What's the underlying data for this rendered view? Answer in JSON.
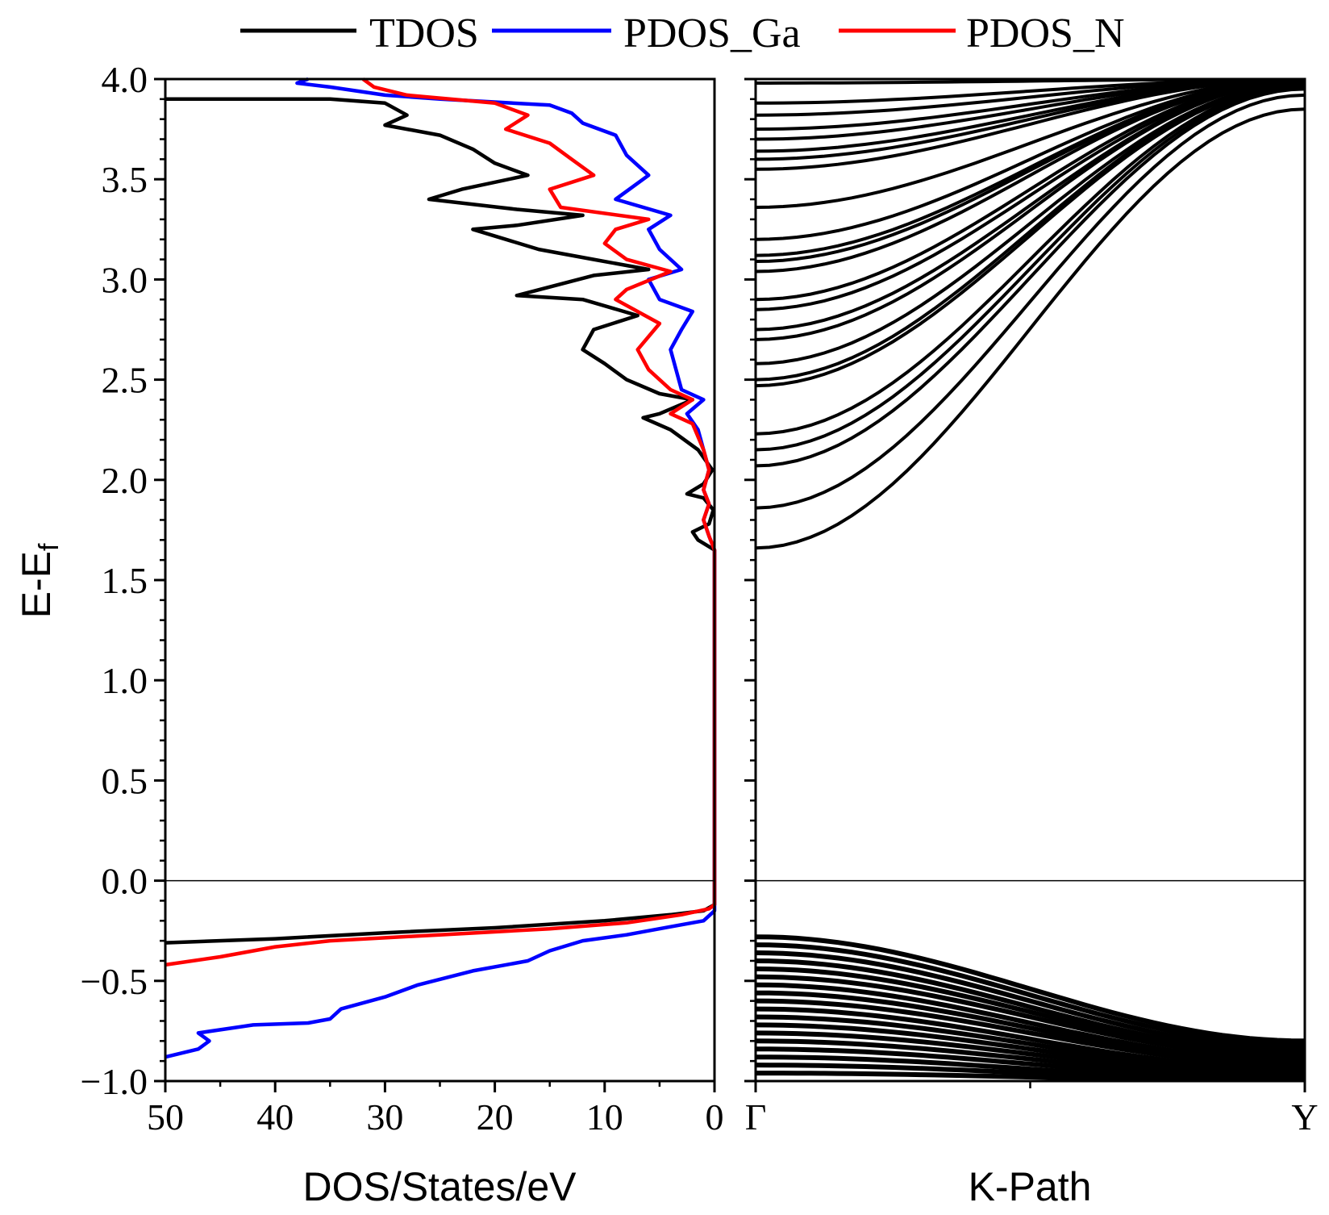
{
  "chart_data": [
    {
      "type": "line",
      "panel": "DOS",
      "xlabel": "DOS/States/eV",
      "ylabel_main": "E-E",
      "ylabel_sub": "f",
      "xlim": [
        50,
        0
      ],
      "ylim": [
        -1.0,
        4.0
      ],
      "x_ticks": [
        "50",
        "40",
        "30",
        "20",
        "10",
        "0"
      ],
      "x_tick_values": [
        50,
        40,
        30,
        20,
        10,
        0
      ],
      "y_ticks": [
        "−1.0",
        "−0.5",
        "0.0",
        "0.5",
        "1.0",
        "1.5",
        "2.0",
        "2.5",
        "3.0",
        "3.5",
        "4.0"
      ],
      "y_tick_values": [
        -1.0,
        -0.5,
        0.0,
        0.5,
        1.0,
        1.5,
        2.0,
        2.5,
        3.0,
        3.5,
        4.0
      ],
      "reference_line_y": 0.0,
      "series": [
        {
          "name": "TDOS",
          "color": "#000000",
          "points": [
            [
              50,
              -0.31
            ],
            [
              40,
              -0.29
            ],
            [
              30,
              -0.26
            ],
            [
              20,
              -0.235
            ],
            [
              10,
              -0.2
            ],
            [
              4,
              -0.17
            ],
            [
              1,
              -0.15
            ],
            [
              0,
              -0.12
            ],
            [
              0,
              1.65
            ],
            [
              1.5,
              1.7
            ],
            [
              2,
              1.74
            ],
            [
              0.5,
              1.78
            ],
            [
              0.1,
              1.85
            ],
            [
              1,
              1.91
            ],
            [
              2.5,
              1.93
            ],
            [
              1,
              1.98
            ],
            [
              0.2,
              2.05
            ],
            [
              1.5,
              2.15
            ],
            [
              4,
              2.25
            ],
            [
              6.5,
              2.31
            ],
            [
              5,
              2.33
            ],
            [
              2,
              2.4
            ],
            [
              5,
              2.43
            ],
            [
              8,
              2.5
            ],
            [
              10,
              2.58
            ],
            [
              12,
              2.65
            ],
            [
              11,
              2.75
            ],
            [
              7,
              2.82
            ],
            [
              12,
              2.9
            ],
            [
              18,
              2.92
            ],
            [
              11,
              3.02
            ],
            [
              6,
              3.05
            ],
            [
              11,
              3.1
            ],
            [
              16,
              3.15
            ],
            [
              22,
              3.25
            ],
            [
              18,
              3.27
            ],
            [
              12,
              3.32
            ],
            [
              18,
              3.35
            ],
            [
              26,
              3.4
            ],
            [
              23,
              3.45
            ],
            [
              17,
              3.52
            ],
            [
              20,
              3.58
            ],
            [
              22,
              3.65
            ],
            [
              25,
              3.72
            ],
            [
              30,
              3.77
            ],
            [
              28,
              3.82
            ],
            [
              30,
              3.88
            ],
            [
              35,
              3.9
            ],
            [
              42,
              3.9
            ],
            [
              50,
              3.9
            ]
          ]
        },
        {
          "name": "PDOS_Ga",
          "color": "#0000ff",
          "points": [
            [
              50,
              -0.88
            ],
            [
              47,
              -0.84
            ],
            [
              46,
              -0.8
            ],
            [
              47,
              -0.76
            ],
            [
              42,
              -0.72
            ],
            [
              37,
              -0.71
            ],
            [
              35,
              -0.69
            ],
            [
              34,
              -0.64
            ],
            [
              30,
              -0.58
            ],
            [
              27,
              -0.52
            ],
            [
              22,
              -0.45
            ],
            [
              17,
              -0.4
            ],
            [
              15,
              -0.35
            ],
            [
              12,
              -0.3
            ],
            [
              8,
              -0.27
            ],
            [
              4,
              -0.23
            ],
            [
              1,
              -0.2
            ],
            [
              0,
              -0.15
            ],
            [
              0,
              1.65
            ],
            [
              0.5,
              1.72
            ],
            [
              1,
              1.8
            ],
            [
              0.5,
              1.88
            ],
            [
              1,
              1.95
            ],
            [
              0.5,
              2.05
            ],
            [
              1,
              2.15
            ],
            [
              1.5,
              2.25
            ],
            [
              2.5,
              2.33
            ],
            [
              1,
              2.4
            ],
            [
              3,
              2.45
            ],
            [
              3.5,
              2.55
            ],
            [
              4,
              2.65
            ],
            [
              3,
              2.75
            ],
            [
              2,
              2.84
            ],
            [
              5,
              2.9
            ],
            [
              6,
              3.0
            ],
            [
              3,
              3.05
            ],
            [
              5,
              3.15
            ],
            [
              6,
              3.25
            ],
            [
              4,
              3.32
            ],
            [
              9,
              3.4
            ],
            [
              6,
              3.52
            ],
            [
              8,
              3.62
            ],
            [
              9,
              3.72
            ],
            [
              12,
              3.78
            ],
            [
              13,
              3.83
            ],
            [
              15,
              3.87
            ],
            [
              25,
              3.9
            ],
            [
              30,
              3.92
            ],
            [
              35,
              3.96
            ],
            [
              38,
              3.98
            ],
            [
              37,
              4.0
            ]
          ]
        },
        {
          "name": "PDOS_N",
          "color": "#ff0000",
          "points": [
            [
              50,
              -0.42
            ],
            [
              45,
              -0.38
            ],
            [
              40,
              -0.33
            ],
            [
              35,
              -0.3
            ],
            [
              25,
              -0.27
            ],
            [
              15,
              -0.24
            ],
            [
              8,
              -0.21
            ],
            [
              3,
              -0.17
            ],
            [
              0.5,
              -0.14
            ],
            [
              0,
              -0.12
            ],
            [
              0,
              1.65
            ],
            [
              0.5,
              1.72
            ],
            [
              1,
              1.8
            ],
            [
              0.5,
              1.88
            ],
            [
              1,
              1.95
            ],
            [
              0.5,
              2.05
            ],
            [
              1,
              2.15
            ],
            [
              2,
              2.28
            ],
            [
              4,
              2.33
            ],
            [
              2,
              2.4
            ],
            [
              4,
              2.45
            ],
            [
              6,
              2.55
            ],
            [
              7,
              2.65
            ],
            [
              5,
              2.78
            ],
            [
              9,
              2.9
            ],
            [
              8,
              2.95
            ],
            [
              4,
              3.04
            ],
            [
              8,
              3.1
            ],
            [
              10,
              3.18
            ],
            [
              9,
              3.25
            ],
            [
              6,
              3.3
            ],
            [
              14,
              3.36
            ],
            [
              15,
              3.45
            ],
            [
              11,
              3.52
            ],
            [
              13,
              3.6
            ],
            [
              15,
              3.68
            ],
            [
              19,
              3.75
            ],
            [
              17,
              3.82
            ],
            [
              20,
              3.88
            ],
            [
              28,
              3.92
            ],
            [
              31,
              3.96
            ],
            [
              32,
              4.0
            ]
          ]
        }
      ]
    },
    {
      "type": "line",
      "panel": "Band structure",
      "xlabel": "K-Path",
      "ylim": [
        -1.0,
        4.0
      ],
      "x_ticks": [
        "Γ",
        "Y"
      ],
      "x_tick_values": [
        0,
        1
      ],
      "reference_line_y": 0.0,
      "line_color": "#000000",
      "conduction_bands": [
        {
          "gamma": 1.66,
          "y_end": 3.85
        },
        {
          "gamma": 1.86,
          "y_end": 3.92
        },
        {
          "gamma": 2.07,
          "y_end": 3.95
        },
        {
          "gamma": 2.15,
          "y_end": 3.96
        },
        {
          "gamma": 2.23,
          "y_end": 3.97
        },
        {
          "gamma": 2.47,
          "y_end": 3.97
        },
        {
          "gamma": 2.5,
          "y_end": 3.98
        },
        {
          "gamma": 2.58,
          "y_end": 3.98
        },
        {
          "gamma": 2.7,
          "y_end": 3.99
        },
        {
          "gamma": 2.75,
          "y_end": 3.99
        },
        {
          "gamma": 2.85,
          "y_end": 3.99
        },
        {
          "gamma": 2.9,
          "y_end": 4.0
        },
        {
          "gamma": 3.04,
          "y_end": 4.0
        },
        {
          "gamma": 3.09,
          "y_end": 4.0
        },
        {
          "gamma": 3.12,
          "y_end": 4.0
        },
        {
          "gamma": 3.2,
          "y_end": 4.0
        },
        {
          "gamma": 3.36,
          "y_end": 4.0
        },
        {
          "gamma": 3.55,
          "y_end": 4.0
        },
        {
          "gamma": 3.6,
          "y_end": 4.0
        },
        {
          "gamma": 3.64,
          "y_end": 4.0
        },
        {
          "gamma": 3.7,
          "y_end": 4.0
        },
        {
          "gamma": 3.75,
          "y_end": 4.0
        },
        {
          "gamma": 3.82,
          "y_end": 4.0
        },
        {
          "gamma": 3.88,
          "y_end": 4.0
        },
        {
          "gamma": 3.98,
          "y_end": 4.0
        }
      ],
      "valence_bands": [
        {
          "gamma": -0.28,
          "y_end": -0.8
        },
        {
          "gamma": -0.32,
          "y_end": -0.82
        },
        {
          "gamma": -0.36,
          "y_end": -0.84
        },
        {
          "gamma": -0.4,
          "y_end": -0.86
        },
        {
          "gamma": -0.44,
          "y_end": -0.87
        },
        {
          "gamma": -0.48,
          "y_end": -0.88
        },
        {
          "gamma": -0.52,
          "y_end": -0.9
        },
        {
          "gamma": -0.56,
          "y_end": -0.91
        },
        {
          "gamma": -0.6,
          "y_end": -0.92
        },
        {
          "gamma": -0.64,
          "y_end": -0.94
        },
        {
          "gamma": -0.68,
          "y_end": -0.95
        },
        {
          "gamma": -0.72,
          "y_end": -0.96
        },
        {
          "gamma": -0.76,
          "y_end": -0.97
        },
        {
          "gamma": -0.8,
          "y_end": -0.98
        },
        {
          "gamma": -0.84,
          "y_end": -0.99
        },
        {
          "gamma": -0.88,
          "y_end": -1.0
        },
        {
          "gamma": -0.92,
          "y_end": -1.0
        },
        {
          "gamma": -0.96,
          "y_end": -1.0
        }
      ]
    }
  ],
  "legend": [
    {
      "label": "TDOS",
      "color": "#000000"
    },
    {
      "label": "PDOS_Ga",
      "color": "#0000ff"
    },
    {
      "label": "PDOS_N",
      "color": "#ff0000"
    }
  ]
}
